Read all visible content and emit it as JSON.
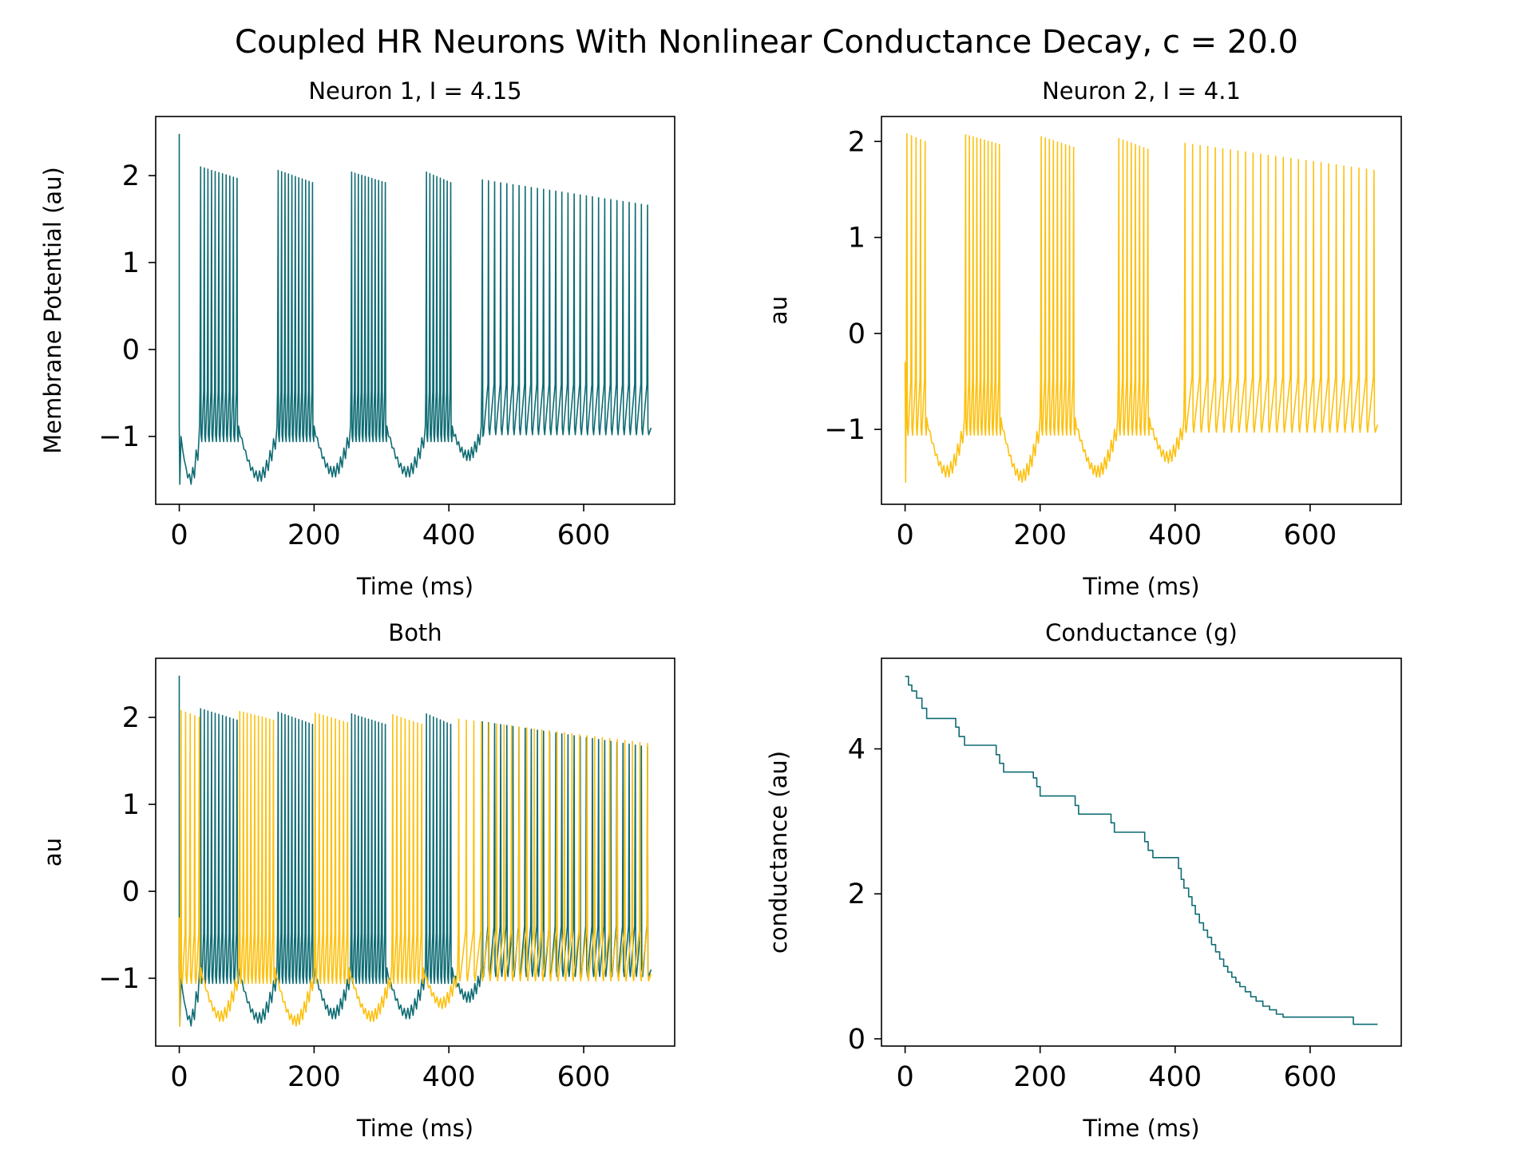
{
  "figure": {
    "title": "Coupled HR Neurons With Nonlinear Conductance Decay, c = 20.0"
  },
  "colors": {
    "neuron1": "#0e6b73",
    "neuron2": "#fdc00e",
    "conductance": "#0e6b73"
  },
  "chart_data": [
    {
      "type": "line",
      "title": "Neuron 1, I = 4.15",
      "xlabel": "Time (ms)",
      "ylabel": "Membrane Potential (au)",
      "xlim": [
        -35,
        735
      ],
      "ylim": [
        -1.78,
        2.68
      ],
      "xticks": [
        0,
        200,
        400,
        600
      ],
      "yticks": [
        -1,
        0,
        1,
        2
      ],
      "grid": false,
      "series": [
        {
          "color_key": "neuron1",
          "bursts": [
            {
              "start": 32,
              "end": 86,
              "peak_first": 2.1,
              "peak_last": 1.97,
              "spikes": 11,
              "trough": -0.98
            },
            {
              "start": 147,
              "end": 198,
              "peak_first": 2.06,
              "peak_last": 1.92,
              "spikes": 11,
              "trough": -0.98
            },
            {
              "start": 256,
              "end": 306,
              "peak_first": 2.04,
              "peak_last": 1.92,
              "spikes": 11,
              "trough": -0.98
            },
            {
              "start": 367,
              "end": 403,
              "peak_first": 2.04,
              "peak_last": 1.92,
              "spikes": 8,
              "trough": -0.98
            },
            {
              "start": 450,
              "end": 695,
              "peak_first": 1.95,
              "peak_last": 1.66,
              "spikes": 28,
              "trough": -0.9
            }
          ],
          "quiet": [
            {
              "start": 0,
              "end": 30,
              "min": -1.55
            },
            {
              "start": 88,
              "end": 145,
              "min": -1.52
            },
            {
              "start": 200,
              "end": 254,
              "min": -1.47
            },
            {
              "start": 308,
              "end": 365,
              "min": -1.47
            },
            {
              "start": 405,
              "end": 448,
              "min": -1.28
            }
          ],
          "initial_spike": 2.48,
          "x_end": 700
        }
      ]
    },
    {
      "type": "line",
      "title": "Neuron 2, I = 4.1",
      "xlabel": "Time (ms)",
      "ylabel": "au",
      "xlim": [
        -35,
        735
      ],
      "ylim": [
        -1.78,
        2.26
      ],
      "xticks": [
        0,
        200,
        400,
        600
      ],
      "yticks": [
        -1,
        0,
        1,
        2
      ],
      "grid": false,
      "series": [
        {
          "color_key": "neuron2",
          "bursts": [
            {
              "start": 3,
              "end": 30,
              "peak_first": 2.08,
              "peak_last": 2.0,
              "spikes": 5,
              "trough": -0.98
            },
            {
              "start": 90,
              "end": 140,
              "peak_first": 2.07,
              "peak_last": 1.97,
              "spikes": 10,
              "trough": -0.98
            },
            {
              "start": 202,
              "end": 250,
              "peak_first": 2.05,
              "peak_last": 1.94,
              "spikes": 9,
              "trough": -0.98
            },
            {
              "start": 317,
              "end": 360,
              "peak_first": 2.03,
              "peak_last": 1.92,
              "spikes": 8,
              "trough": -0.98
            },
            {
              "start": 415,
              "end": 695,
              "peak_first": 1.98,
              "peak_last": 1.7,
              "spikes": 26,
              "trough": -0.95
            }
          ],
          "quiet": [
            {
              "start": 32,
              "end": 88,
              "min": -1.5
            },
            {
              "start": 142,
              "end": 200,
              "min": -1.55
            },
            {
              "start": 252,
              "end": 315,
              "min": -1.5
            },
            {
              "start": 362,
              "end": 413,
              "min": -1.35
            }
          ],
          "initial_spike": -0.3,
          "x_end": 700
        }
      ]
    },
    {
      "type": "line",
      "title": "Both",
      "xlabel": "Time (ms)",
      "ylabel": "au",
      "xlim": [
        -35,
        735
      ],
      "ylim": [
        -1.78,
        2.68
      ],
      "xticks": [
        0,
        200,
        400,
        600
      ],
      "yticks": [
        -1,
        0,
        1,
        2
      ],
      "grid": false,
      "series": [
        {
          "color_key": "neuron1",
          "same_as": "Neuron 1, I = 4.15"
        },
        {
          "color_key": "neuron2",
          "same_as": "Neuron 2, I = 4.1"
        }
      ]
    },
    {
      "type": "line",
      "title": "Conductance (g)",
      "xlabel": "Time (ms)",
      "ylabel": "conductance (au)",
      "xlim": [
        -35,
        735
      ],
      "ylim": [
        -0.1,
        5.25
      ],
      "xticks": [
        0,
        200,
        400,
        600
      ],
      "yticks": [
        0,
        2,
        4
      ],
      "grid": false,
      "series": [
        {
          "color_key": "conductance",
          "step": true,
          "x": [
            0,
            5,
            10,
            17,
            25,
            32,
            75,
            80,
            88,
            135,
            140,
            146,
            190,
            195,
            200,
            252,
            257,
            305,
            310,
            355,
            360,
            367,
            405,
            409,
            413,
            420,
            425,
            430,
            436,
            442,
            448,
            454,
            460,
            466,
            472,
            478,
            484,
            490,
            496,
            504,
            512,
            520,
            530,
            540,
            550,
            560,
            570,
            664,
            700
          ],
          "y": [
            5.0,
            4.88,
            4.8,
            4.7,
            4.56,
            4.42,
            4.3,
            4.17,
            4.05,
            3.92,
            3.8,
            3.68,
            3.6,
            3.48,
            3.35,
            3.22,
            3.1,
            2.98,
            2.85,
            2.72,
            2.6,
            2.5,
            2.35,
            2.2,
            2.08,
            1.96,
            1.84,
            1.72,
            1.6,
            1.5,
            1.4,
            1.3,
            1.2,
            1.1,
            1.0,
            0.92,
            0.85,
            0.78,
            0.72,
            0.65,
            0.58,
            0.52,
            0.45,
            0.4,
            0.34,
            0.3,
            0.3,
            0.2,
            0.2
          ]
        }
      ]
    }
  ]
}
